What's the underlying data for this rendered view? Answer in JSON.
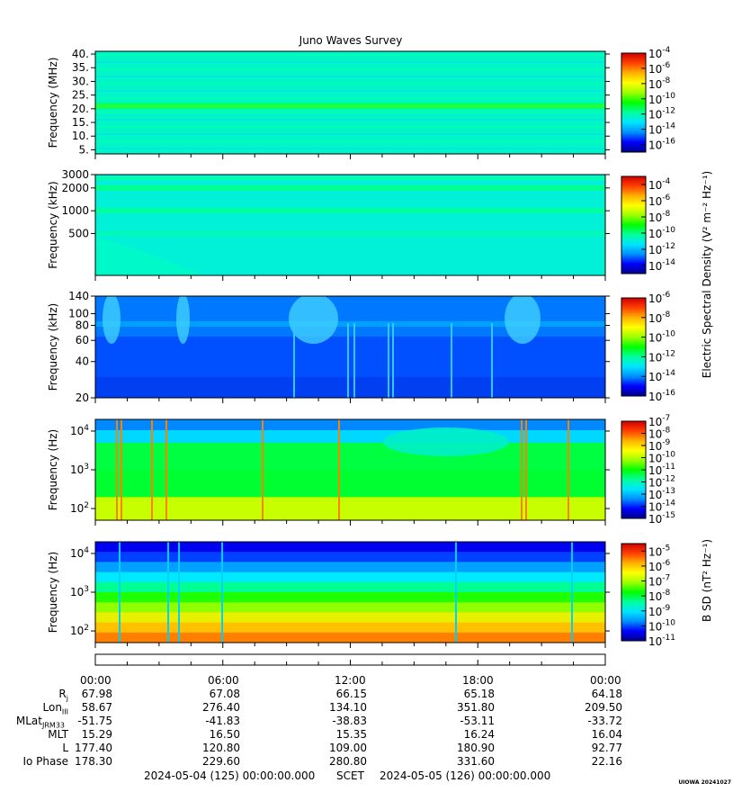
{
  "title": "Juno Waves Survey",
  "colors": {
    "cmap": [
      "#00008c",
      "#0000ff",
      "#0090ff",
      "#00e5ff",
      "#00ff9c",
      "#00ff00",
      "#9cff00",
      "#ffff00",
      "#ffb000",
      "#ff4000",
      "#d00000"
    ]
  },
  "chart_data": [
    {
      "type": "heatmap",
      "panel": "panel1",
      "ylabel": "Frequency (MHz)",
      "yticks": [
        "5.",
        "10.",
        "15.",
        "20.",
        "25.",
        "30.",
        "35.",
        "40."
      ],
      "ylim": [
        3.5,
        41
      ],
      "yscale": "linear",
      "description_bands": [
        {
          "freq": 21,
          "level": "1e-11"
        }
      ],
      "colorbar": {
        "ticks": [
          "10-4",
          "10-6",
          "10-8",
          "10-10",
          "10-12",
          "10-14",
          "10-16"
        ],
        "range_exp": [
          -17,
          -4
        ]
      }
    },
    {
      "type": "heatmap",
      "panel": "panel2",
      "ylabel": "Frequency (kHz)",
      "yticks": [
        "500",
        "1000",
        "2000",
        "3000"
      ],
      "yscale": "log",
      "ylim": [
        140,
        3000
      ],
      "colorbar": {
        "ticks": [
          "10-4",
          "10-6",
          "10-8",
          "10-10",
          "10-12",
          "10-14"
        ],
        "range_exp": [
          -15,
          -3
        ]
      }
    },
    {
      "type": "heatmap",
      "panel": "panel3",
      "ylabel": "Frequency (kHz)",
      "yticks": [
        "20",
        "40",
        "60",
        "80",
        "100",
        "140"
      ],
      "yscale": "log",
      "ylim": [
        20,
        140
      ],
      "colorbar": {
        "ticks": [
          "10-6",
          "10-8",
          "10-10",
          "10-12",
          "10-14",
          "10-16"
        ],
        "range_exp": [
          -16,
          -6
        ]
      }
    },
    {
      "type": "heatmap",
      "panel": "panel4",
      "ylabel": "Frequency (Hz)",
      "yticks": [
        "10^2",
        "10^3",
        "10^4"
      ],
      "yscale": "log",
      "ylim": [
        50,
        20000
      ],
      "colorbar": {
        "ticks": [
          "10-7",
          "10-8",
          "10-9",
          "10-10",
          "10-11",
          "10-12",
          "10-13",
          "10-14",
          "10-15"
        ],
        "range_exp": [
          -15,
          -7
        ]
      }
    },
    {
      "type": "heatmap",
      "panel": "panel5",
      "ylabel": "Frequency (Hz)",
      "yticks": [
        "10^2",
        "10^3",
        "10^4"
      ],
      "yscale": "log",
      "ylim": [
        50,
        20000
      ],
      "colorbar": {
        "ticks": [
          "10-5",
          "10-6",
          "10-7",
          "10-8",
          "10-9",
          "10-10",
          "10-11"
        ],
        "range_exp": [
          -11,
          -4.5
        ]
      }
    }
  ],
  "colorbar_titles": {
    "electric": "Electric Spectral Density (V² m⁻² Hz⁻¹)",
    "magnetic": "B SD (nT² Hz⁻¹)"
  },
  "ephemeris": {
    "times": [
      "00:00",
      "06:00",
      "12:00",
      "18:00",
      "00:00"
    ],
    "rows": [
      {
        "label": "Rj",
        "values": [
          "67.98",
          "67.08",
          "66.15",
          "65.18",
          "64.18"
        ]
      },
      {
        "label": "LonIII",
        "values": [
          "58.67",
          "276.40",
          "134.10",
          "351.80",
          "209.50"
        ]
      },
      {
        "label": "MLatJRM33",
        "values": [
          "-51.75",
          "-41.83",
          "-38.83",
          "-53.11",
          "-33.72"
        ]
      },
      {
        "label": "MLT",
        "values": [
          "15.29",
          "16.50",
          "15.35",
          "16.24",
          "16.04"
        ]
      },
      {
        "label": "L",
        "values": [
          "177.40",
          "120.80",
          "109.00",
          "180.90",
          "92.77"
        ]
      },
      {
        "label": "Io Phase",
        "values": [
          "178.30",
          "229.60",
          "280.80",
          "331.60",
          "22.16"
        ]
      }
    ]
  },
  "footer": {
    "start": "2024-05-04 (125) 00:00:00.000",
    "scet": "SCET",
    "end": "2024-05-05 (126) 00:00:00.000"
  },
  "credit": "UIOWA 20241027"
}
